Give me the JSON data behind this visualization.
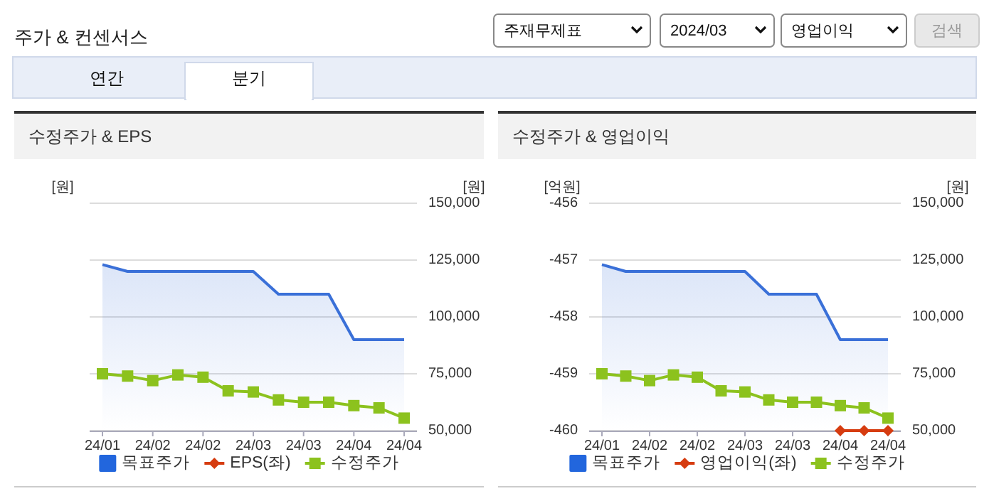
{
  "chart_data": [
    {
      "type": "line",
      "title": "수정주가 & EPS",
      "ylabel": "[원]",
      "y2label": "[원]",
      "annotations": [
        "주가 & 컨센서스",
        "주재무제표",
        "2024/03",
        "영업이익",
        "검색",
        "연간",
        "분기"
      ],
      "categories": [
        "24/01",
        null,
        "24/02",
        null,
        "24/02",
        null,
        "24/03",
        null,
        "24/03",
        null,
        "24/04",
        null,
        "24/04"
      ],
      "series": [
        {
          "name": "목표주가",
          "type": "area",
          "axis": "y2",
          "color": "#3a70d8",
          "marker": "none",
          "values": [
            123000,
            120000,
            120000,
            120000,
            120000,
            120000,
            120000,
            110000,
            110000,
            110000,
            90000,
            90000,
            90000
          ]
        },
        {
          "name": "EPS(좌)",
          "type": "line",
          "color": "#d63c10",
          "marker": "diamond",
          "values": [
            null,
            null,
            null,
            null,
            null,
            null,
            null,
            null,
            null,
            null,
            null,
            null,
            null
          ]
        },
        {
          "name": "수정주가",
          "type": "line",
          "axis": "y2",
          "color": "#8cc21e",
          "marker": "square",
          "values": [
            75000,
            74000,
            72000,
            74500,
            73500,
            67500,
            67000,
            63500,
            62500,
            62500,
            61000,
            60000,
            55500
          ]
        }
      ],
      "y2lim": [
        50000,
        150000
      ],
      "y2ticks": [
        {
          "value": 50000,
          "label": "50,000"
        },
        {
          "value": 75000,
          "label": "75,000"
        },
        {
          "value": 100000,
          "label": "100,000"
        },
        {
          "value": 125000,
          "label": "125,000"
        },
        {
          "value": 150000,
          "label": "150,000"
        }
      ],
      "grid": "y",
      "legend": "bottom"
    },
    {
      "type": "line",
      "title": "수정주가 & 영업이익",
      "ylabel": "[억원]",
      "y2label": "[원]",
      "categories": [
        "24/01",
        null,
        "24/02",
        null,
        "24/02",
        null,
        "24/03",
        null,
        "24/03",
        null,
        "24/04",
        null,
        "24/04"
      ],
      "series": [
        {
          "name": "목표주가",
          "type": "area",
          "axis": "y2",
          "color": "#3a70d8",
          "marker": "none",
          "values": [
            123000,
            120000,
            120000,
            120000,
            120000,
            120000,
            120000,
            110000,
            110000,
            110000,
            90000,
            90000,
            90000
          ]
        },
        {
          "name": "영업이익(좌)",
          "type": "line",
          "color": "#d63c10",
          "marker": "diamond",
          "values": [
            null,
            null,
            null,
            null,
            null,
            null,
            null,
            null,
            null,
            null,
            -460,
            -460,
            -460
          ]
        },
        {
          "name": "수정주가",
          "type": "line",
          "axis": "y2",
          "color": "#8cc21e",
          "marker": "square",
          "values": [
            75000,
            74000,
            72000,
            74500,
            73500,
            67500,
            67000,
            63500,
            62500,
            62500,
            61000,
            60000,
            55500
          ]
        }
      ],
      "ylim": [
        -460,
        -456
      ],
      "yticks": [
        -460,
        -459,
        -458,
        -457,
        -456
      ],
      "y2lim": [
        50000,
        150000
      ],
      "y2ticks": [
        {
          "value": 50000,
          "label": "50,000"
        },
        {
          "value": 75000,
          "label": "75,000"
        },
        {
          "value": 100000,
          "label": "100,000"
        },
        {
          "value": 125000,
          "label": "125,000"
        },
        {
          "value": 150000,
          "label": "150,000"
        }
      ],
      "grid": "y",
      "legend": "bottom"
    }
  ]
}
